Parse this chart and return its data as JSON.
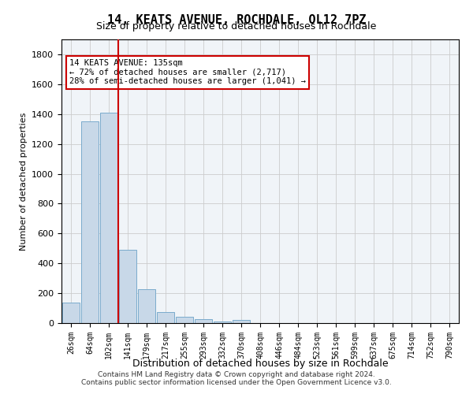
{
  "title": "14, KEATS AVENUE, ROCHDALE, OL12 7PZ",
  "subtitle": "Size of property relative to detached houses in Rochdale",
  "xlabel": "Distribution of detached houses by size in Rochdale",
  "ylabel": "Number of detached properties",
  "bar_values": [
    135,
    1350,
    1410,
    490,
    225,
    75,
    42,
    25,
    10,
    20,
    0,
    0,
    0,
    0,
    0,
    0,
    0,
    0,
    0,
    0
  ],
  "bar_labels": [
    "26sqm",
    "64sqm",
    "102sqm",
    "141sqm",
    "179sqm",
    "217sqm",
    "255sqm",
    "293sqm",
    "332sqm",
    "370sqm",
    "408sqm",
    "446sqm",
    "484sqm",
    "523sqm",
    "561sqm",
    "599sqm",
    "637sqm",
    "675sqm",
    "714sqm",
    "752sqm",
    "790sqm"
  ],
  "bar_color": "#c8d8e8",
  "bar_edgecolor": "#7aabcc",
  "vline_x": 2,
  "vline_color": "#cc0000",
  "annotation_text": "14 KEATS AVENUE: 135sqm\n← 72% of detached houses are smaller (2,717)\n28% of semi-detached houses are larger (1,041) →",
  "annotation_box_color": "#ffffff",
  "annotation_box_edgecolor": "#cc0000",
  "ylim": [
    0,
    1900
  ],
  "yticks": [
    0,
    200,
    400,
    600,
    800,
    1000,
    1200,
    1400,
    1600,
    1800
  ],
  "bg_color": "#f0f4f8",
  "footer": "Contains HM Land Registry data © Crown copyright and database right 2024.\nContains public sector information licensed under the Open Government Licence v3.0."
}
